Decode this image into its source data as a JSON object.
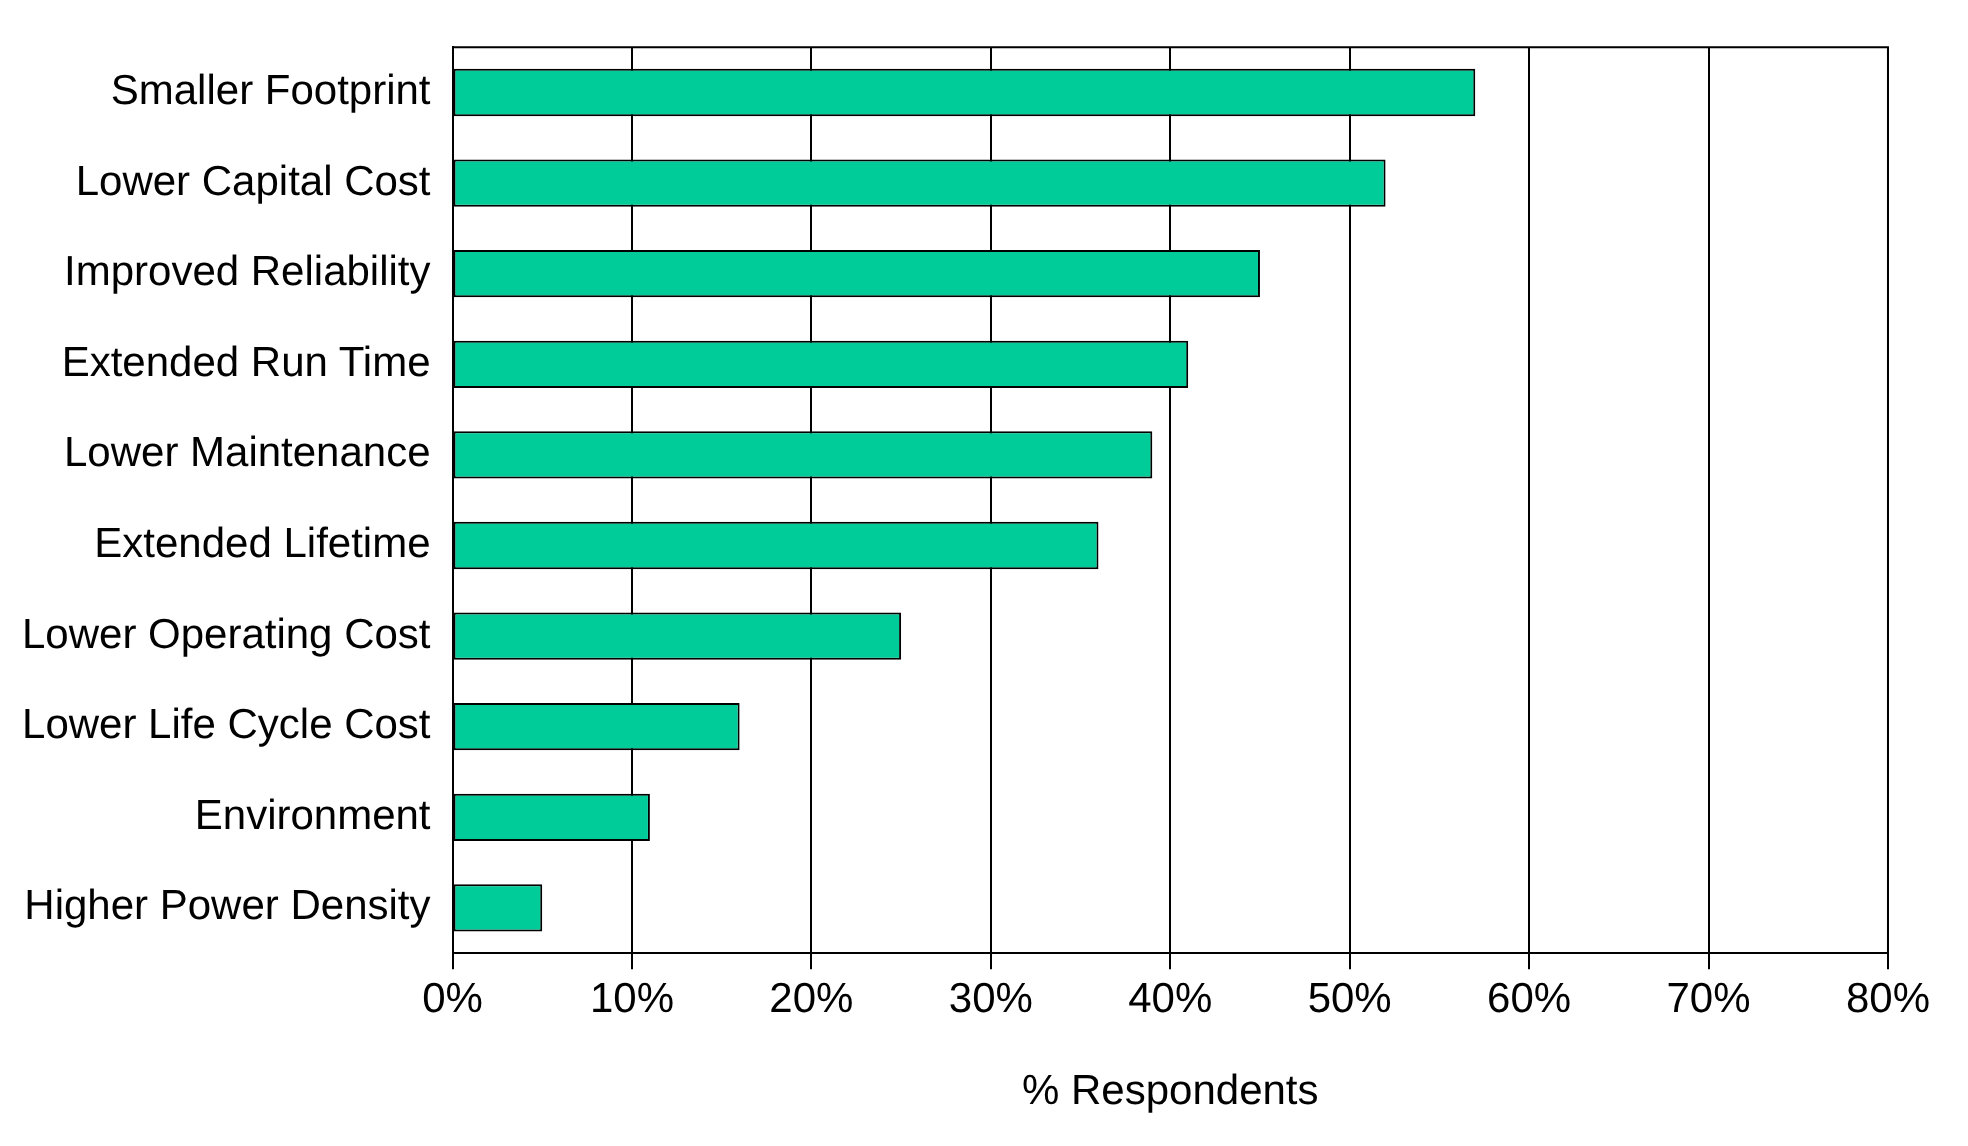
{
  "chart_data": {
    "type": "bar",
    "orientation": "horizontal",
    "xlabel": "% Respondents",
    "categories": [
      "Smaller Footprint",
      "Lower Capital Cost",
      "Improved Reliability",
      "Extended Run Time",
      "Lower Maintenance",
      "Extended Lifetime",
      "Lower Operating Cost",
      "Lower Life Cycle Cost",
      "Environment",
      "Higher Power Density"
    ],
    "values": [
      57,
      52,
      45,
      41,
      39,
      36,
      25,
      16,
      11,
      5
    ],
    "color": "#00cc99",
    "xlim": [
      0,
      80
    ],
    "xticks": [
      {
        "value": 0,
        "label": "0%"
      },
      {
        "value": 10,
        "label": "10%"
      },
      {
        "value": 20,
        "label": "20%"
      },
      {
        "value": 30,
        "label": "30%"
      },
      {
        "value": 40,
        "label": "40%"
      },
      {
        "value": 50,
        "label": "50%"
      },
      {
        "value": 60,
        "label": "60%"
      },
      {
        "value": 70,
        "label": "70%"
      },
      {
        "value": 80,
        "label": "80%"
      }
    ],
    "grid": "x",
    "legend": false
  }
}
